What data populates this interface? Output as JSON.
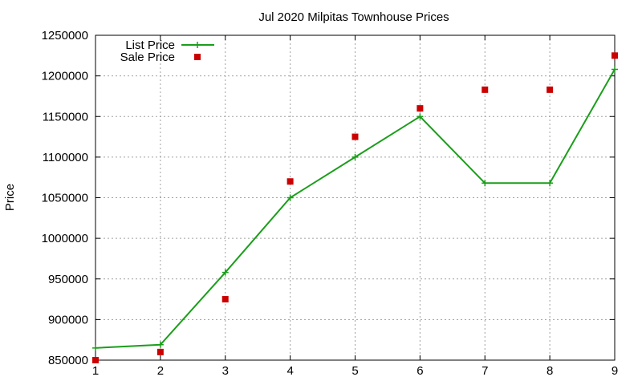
{
  "chart_data": {
    "type": "line",
    "title": "Jul 2020 Milpitas Townhouse Prices",
    "xlabel": "",
    "ylabel": "Price",
    "x": [
      1,
      2,
      3,
      4,
      5,
      6,
      7,
      8,
      9
    ],
    "xlim": [
      1,
      9
    ],
    "ylim": [
      850000,
      1250000
    ],
    "x_ticks": [
      "1",
      "2",
      "3",
      "4",
      "5",
      "6",
      "7",
      "8",
      "9"
    ],
    "y_ticks": [
      "850000",
      "900000",
      "950000",
      "1000000",
      "1050000",
      "1100000",
      "1150000",
      "1200000",
      "1250000"
    ],
    "grid": true,
    "legend_position": "top-left",
    "series": [
      {
        "name": "List Price",
        "style": "line-plus",
        "color": "#1a9e1a",
        "values": [
          865000,
          869000,
          958000,
          1050000,
          1100000,
          1150000,
          1068000,
          1068000,
          1208000
        ]
      },
      {
        "name": "Sale Price",
        "style": "square-points",
        "color": "#cc0000",
        "values": [
          850000,
          860000,
          925000,
          1070000,
          1125000,
          1160000,
          1183000,
          1183000,
          1225000
        ]
      }
    ]
  }
}
